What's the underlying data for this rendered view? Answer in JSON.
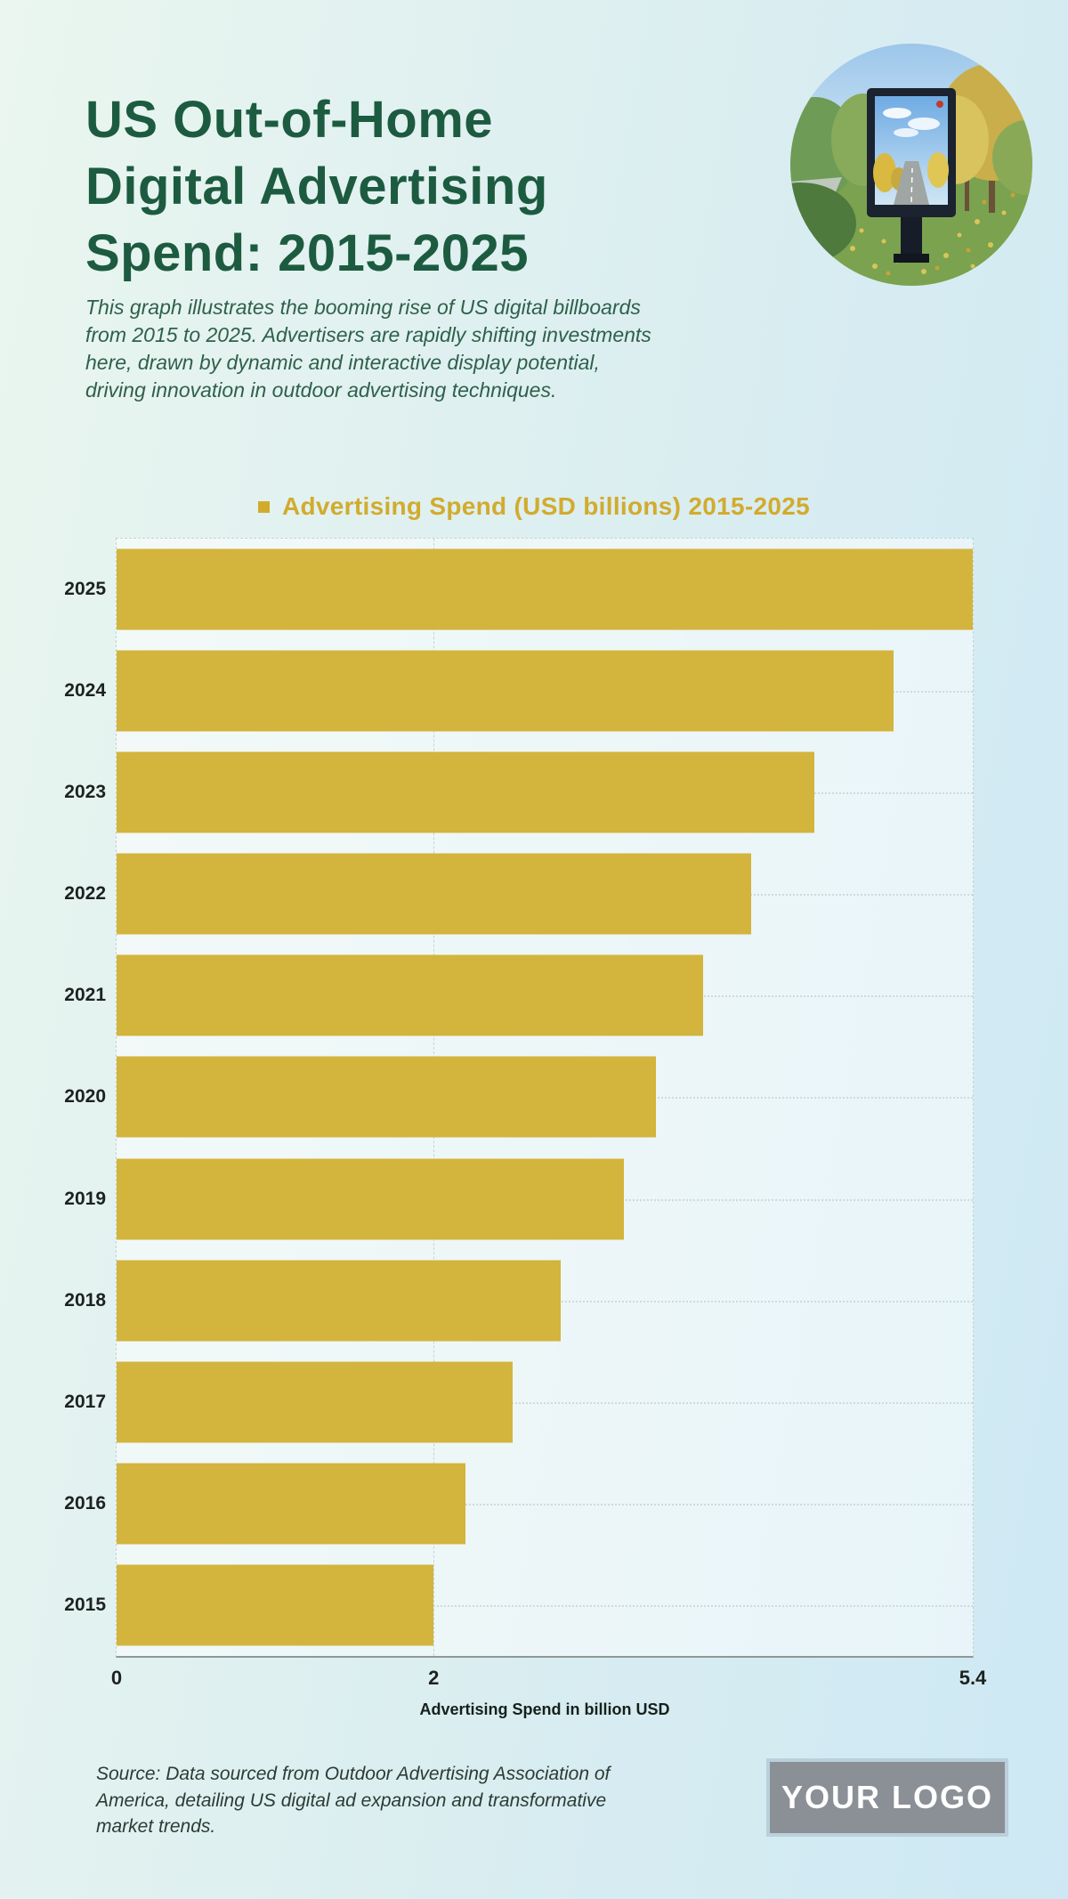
{
  "header": {
    "title_lines": [
      "US Out-of-Home",
      "Digital Advertising",
      "Spend: 2015-2025"
    ],
    "description_lines": [
      "This graph illustrates the booming rise of US digital billboards",
      "from 2015 to 2025. Advertisers are rapidly shifting investments",
      "here, drawn by dynamic and interactive display potential,",
      "driving innovation in outdoor advertising techniques."
    ],
    "hero_image": "digital-billboard-in-autumn-park-photo"
  },
  "chart_data": {
    "type": "bar",
    "orientation": "horizontal",
    "title": "Advertising Spend (USD billions) 2015-2025",
    "legend": "Advertising Spend (USD billions) 2015-2025",
    "legend_position": "top-center",
    "categories": [
      "2025",
      "2024",
      "2023",
      "2022",
      "2021",
      "2020",
      "2019",
      "2018",
      "2017",
      "2016",
      "2015"
    ],
    "values": [
      5.4,
      4.9,
      4.4,
      4.0,
      3.7,
      3.4,
      3.2,
      2.8,
      2.5,
      2.2,
      2.0
    ],
    "xlabel": "Advertising Spend in billion USD",
    "ylabel": "",
    "xlim": [
      0,
      5.4
    ],
    "x_ticks": [
      0,
      2,
      5.4
    ],
    "x_tick_labels": [
      "0",
      "2",
      "5.4"
    ],
    "grid": true,
    "bar_color": "#d3b43c",
    "legend_color": "#d2ab2e"
  },
  "footer": {
    "source_lines": [
      "Source: Data sourced from Outdoor Advertising Association of",
      "America, detailing US digital ad expansion and transformative",
      "market trends."
    ],
    "logo_text": "YOUR LOGO"
  },
  "colors": {
    "brand_green": "#1d5b41",
    "bar_gold": "#d3b43c",
    "background_left": "#eaf6ef",
    "background_right": "#cde8f4",
    "logo_gray": "#8a9095",
    "logo_border": "#bad0dc"
  }
}
